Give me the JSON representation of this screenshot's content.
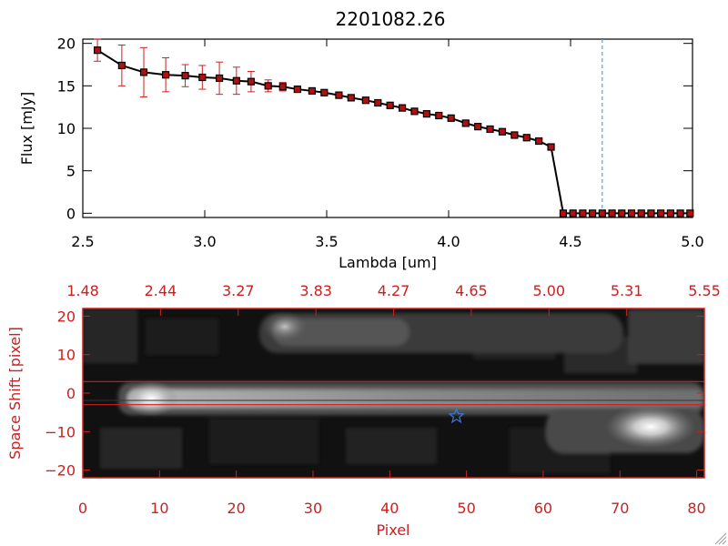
{
  "colors": {
    "spectrum_line": "#000000",
    "spectrum_marker": "#b01010",
    "error_bar": "#cc2020",
    "marker_line": "#5aa0d8",
    "image_axis": "#cc2020",
    "star": "#3a78d8"
  },
  "chart_data": [
    {
      "type": "line",
      "title": "2201082.26",
      "xlabel": "Lambda [um]",
      "ylabel": "Flux [mJy]",
      "xlim": [
        2.5,
        5.0
      ],
      "ylim": [
        -0.5,
        20.5
      ],
      "x_ticks": [
        "2.5",
        "3.0",
        "3.5",
        "4.0",
        "4.5",
        "5.0"
      ],
      "x_tick_values": [
        2.5,
        3.0,
        3.5,
        4.0,
        4.5,
        5.0
      ],
      "y_ticks": [
        "0",
        "5",
        "10",
        "15",
        "20"
      ],
      "y_tick_values": [
        0,
        5,
        10,
        15,
        20
      ],
      "vertical_marker": 4.63,
      "series": [
        {
          "name": "flux",
          "x": [
            2.56,
            2.66,
            2.75,
            2.84,
            2.92,
            2.99,
            3.06,
            3.13,
            3.19,
            3.26,
            3.32,
            3.38,
            3.44,
            3.49,
            3.55,
            3.6,
            3.66,
            3.71,
            3.76,
            3.81,
            3.86,
            3.91,
            3.96,
            4.01,
            4.07,
            4.12,
            4.17,
            4.22,
            4.27,
            4.32,
            4.37,
            4.42,
            4.47,
            4.51,
            4.55,
            4.59,
            4.63,
            4.67,
            4.71,
            4.75,
            4.79,
            4.83,
            4.87,
            4.91,
            4.95,
            4.99
          ],
          "y": [
            19.2,
            17.4,
            16.6,
            16.3,
            16.2,
            16.0,
            15.9,
            15.6,
            15.5,
            15.0,
            14.9,
            14.6,
            14.4,
            14.2,
            13.9,
            13.6,
            13.3,
            13.0,
            12.7,
            12.4,
            12.0,
            11.7,
            11.5,
            11.2,
            10.6,
            10.2,
            9.9,
            9.6,
            9.2,
            8.9,
            8.5,
            7.8,
            0,
            0,
            0,
            0,
            0,
            0,
            0,
            0,
            0,
            0,
            0,
            0,
            0,
            0
          ],
          "err": [
            1.3,
            2.4,
            2.9,
            2.0,
            1.3,
            1.4,
            1.9,
            1.6,
            1.2,
            0.7,
            0.5,
            0,
            0,
            0,
            0,
            0,
            0,
            0,
            0,
            0,
            0,
            0,
            0,
            0,
            0,
            0,
            0,
            0,
            0,
            0,
            0,
            0,
            0,
            0,
            0,
            0,
            0,
            0,
            0,
            0,
            0,
            0,
            0,
            0,
            0,
            0
          ]
        }
      ]
    },
    {
      "type": "heatmap",
      "xlabel": "Pixel",
      "ylabel": "Space Shift [pixel]",
      "xlim": [
        0,
        81
      ],
      "ylim": [
        -22,
        22
      ],
      "x_ticks": [
        "0",
        "10",
        "20",
        "30",
        "40",
        "50",
        "60",
        "70",
        "80"
      ],
      "x_tick_values": [
        0,
        10,
        20,
        30,
        40,
        50,
        60,
        70,
        80
      ],
      "y_ticks": [
        "−20",
        "−10",
        "0",
        "10",
        "20"
      ],
      "y_tick_values": [
        -20,
        -10,
        0,
        10,
        20
      ],
      "top_ticks": [
        "1.48",
        "2.44",
        "3.27",
        "3.83",
        "4.27",
        "4.65",
        "5.00",
        "5.31",
        "5.55"
      ],
      "extraction_band": [
        -3,
        3
      ],
      "star_marker": {
        "x": 48.7,
        "y": -6
      }
    }
  ]
}
